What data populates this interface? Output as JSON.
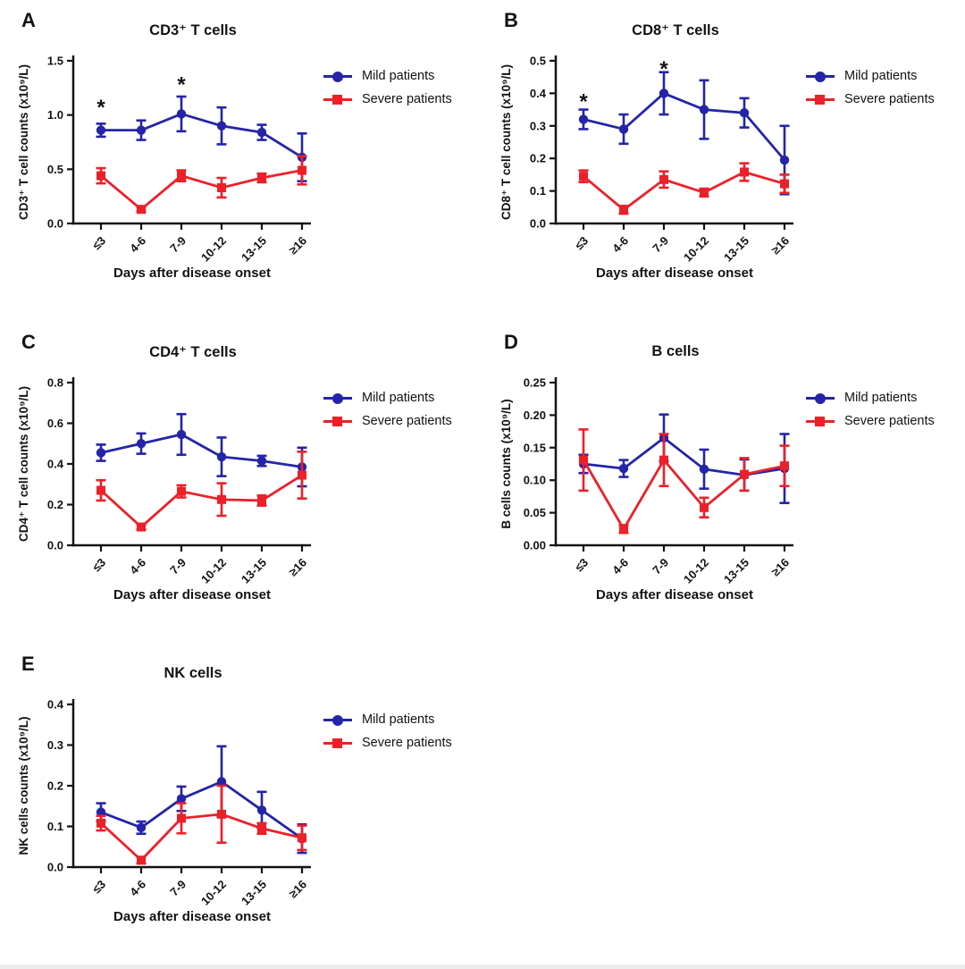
{
  "legend": {
    "mild": "Mild patients",
    "severe": "Severe patients"
  },
  "colors": {
    "mild": "#2424A8",
    "severe": "#EC2028",
    "axis": "#121212",
    "background": "#FFFFFF"
  },
  "chart_data": [
    {
      "panel": "A",
      "type": "line",
      "title": "CD3⁺ T cells",
      "xlabel": "Days after disease onset",
      "ylabel": "CD3⁺ T cell counts (x10⁹/L)",
      "categories": [
        "≤3",
        "4-6",
        "7-9",
        "10-12",
        "13-15",
        "≥16"
      ],
      "ylim": [
        0,
        1.5
      ],
      "ytick_values": [
        0,
        0.5,
        1.0,
        1.5
      ],
      "ytick_labels": [
        "0.0",
        "0.5",
        "1.0",
        "1.5"
      ],
      "legend_position": "right-top",
      "grid": false,
      "series": [
        {
          "key": "mild",
          "name": "Mild patients",
          "marker": "circle",
          "values": [
            0.86,
            0.86,
            1.01,
            0.9,
            0.84,
            0.61
          ],
          "errors": [
            0.06,
            0.09,
            0.16,
            0.17,
            0.07,
            0.22
          ]
        },
        {
          "key": "severe",
          "name": "Severe patients",
          "marker": "square",
          "values": [
            0.44,
            0.13,
            0.44,
            0.33,
            0.42,
            0.49
          ],
          "errors": [
            0.07,
            0.02,
            0.05,
            0.09,
            0.04,
            0.13
          ]
        }
      ],
      "annotations": [
        {
          "x": 0,
          "y": 1.07,
          "text": "*"
        },
        {
          "x": 2,
          "y": 1.28,
          "text": "*"
        }
      ]
    },
    {
      "panel": "B",
      "type": "line",
      "title": "CD8⁺ T cells",
      "xlabel": "Days after disease onset",
      "ylabel": "CD8⁺ T cell counts (x10⁹/L)",
      "categories": [
        "≤3",
        "4-6",
        "7-9",
        "10-12",
        "13-15",
        "≥16"
      ],
      "ylim": [
        0,
        0.5
      ],
      "ytick_values": [
        0,
        0.1,
        0.2,
        0.3,
        0.4,
        0.5
      ],
      "ytick_labels": [
        "0.0",
        "0.1",
        "0.2",
        "0.3",
        "0.4",
        "0.5"
      ],
      "legend_position": "right-top",
      "grid": false,
      "series": [
        {
          "key": "mild",
          "name": "Mild patients",
          "marker": "circle",
          "values": [
            0.32,
            0.29,
            0.4,
            0.35,
            0.34,
            0.195
          ],
          "errors": [
            0.03,
            0.045,
            0.065,
            0.09,
            0.045,
            0.105
          ]
        },
        {
          "key": "severe",
          "name": "Severe patients",
          "marker": "square",
          "values": [
            0.145,
            0.042,
            0.135,
            0.095,
            0.158,
            0.122
          ],
          "errors": [
            0.018,
            0.012,
            0.025,
            0.012,
            0.027,
            0.028
          ]
        }
      ],
      "annotations": [
        {
          "x": 0,
          "y": 0.375,
          "text": "*"
        },
        {
          "x": 2,
          "y": 0.475,
          "text": "*"
        }
      ]
    },
    {
      "panel": "C",
      "type": "line",
      "title": "CD4⁺ T cells",
      "xlabel": "Days after disease onset",
      "ylabel": "CD4⁺ T cell counts (x10⁹/L)",
      "categories": [
        "≤3",
        "4-6",
        "7-9",
        "10-12",
        "13-15",
        "≥16"
      ],
      "ylim": [
        0,
        0.8
      ],
      "ytick_values": [
        0,
        0.2,
        0.4,
        0.6,
        0.8
      ],
      "ytick_labels": [
        "0.0",
        "0.2",
        "0.4",
        "0.6",
        "0.8"
      ],
      "legend_position": "right-top",
      "grid": false,
      "series": [
        {
          "key": "mild",
          "name": "Mild patients",
          "marker": "circle",
          "values": [
            0.455,
            0.5,
            0.545,
            0.435,
            0.415,
            0.385
          ],
          "errors": [
            0.04,
            0.05,
            0.1,
            0.095,
            0.025,
            0.095
          ]
        },
        {
          "key": "severe",
          "name": "Severe patients",
          "marker": "square",
          "values": [
            0.27,
            0.09,
            0.265,
            0.225,
            0.22,
            0.345
          ],
          "errors": [
            0.05,
            0.012,
            0.03,
            0.08,
            0.025,
            0.115
          ]
        }
      ],
      "annotations": []
    },
    {
      "panel": "D",
      "type": "line",
      "title": "B cells",
      "xlabel": "Days after disease onset",
      "ylabel": "B cells counts (x10⁹/L)",
      "categories": [
        "≤3",
        "4-6",
        "7-9",
        "10-12",
        "13-15",
        "≥16"
      ],
      "ylim": [
        0,
        0.25
      ],
      "ytick_values": [
        0,
        0.05,
        0.1,
        0.15,
        0.2,
        0.25
      ],
      "ytick_labels": [
        "0.00",
        "0.05",
        "0.10",
        "0.15",
        "0.20",
        "0.25"
      ],
      "legend_position": "right-top",
      "grid": false,
      "series": [
        {
          "key": "mild",
          "name": "Mild patients",
          "marker": "circle",
          "values": [
            0.125,
            0.118,
            0.165,
            0.117,
            0.108,
            0.118
          ],
          "errors": [
            0.014,
            0.013,
            0.036,
            0.03,
            0.024,
            0.053
          ]
        },
        {
          "key": "severe",
          "name": "Severe patients",
          "marker": "square",
          "values": [
            0.131,
            0.025,
            0.131,
            0.058,
            0.109,
            0.122
          ],
          "errors": [
            0.047,
            0.006,
            0.04,
            0.015,
            0.025,
            0.031
          ]
        }
      ],
      "annotations": []
    },
    {
      "panel": "E",
      "type": "line",
      "title": "NK cells",
      "xlabel": "Days after disease onset",
      "ylabel": "NK cells counts (x10⁹/L)",
      "categories": [
        "≤3",
        "4-6",
        "7-9",
        "10-12",
        "13-15",
        "≥16"
      ],
      "ylim": [
        0,
        0.4
      ],
      "ytick_values": [
        0,
        0.1,
        0.2,
        0.3,
        0.4
      ],
      "ytick_labels": [
        "0.0",
        "0.1",
        "0.2",
        "0.3",
        "0.4"
      ],
      "legend_position": "right-top",
      "grid": false,
      "series": [
        {
          "key": "mild",
          "name": "Mild patients",
          "marker": "circle",
          "values": [
            0.135,
            0.097,
            0.168,
            0.21,
            0.14,
            0.07
          ],
          "errors": [
            0.022,
            0.015,
            0.03,
            0.087,
            0.045,
            0.035
          ]
        },
        {
          "key": "severe",
          "name": "Severe patients",
          "marker": "square",
          "values": [
            0.108,
            0.017,
            0.12,
            0.13,
            0.095,
            0.072
          ],
          "errors": [
            0.018,
            0.008,
            0.037,
            0.07,
            0.013,
            0.03
          ]
        }
      ],
      "annotations": []
    }
  ]
}
